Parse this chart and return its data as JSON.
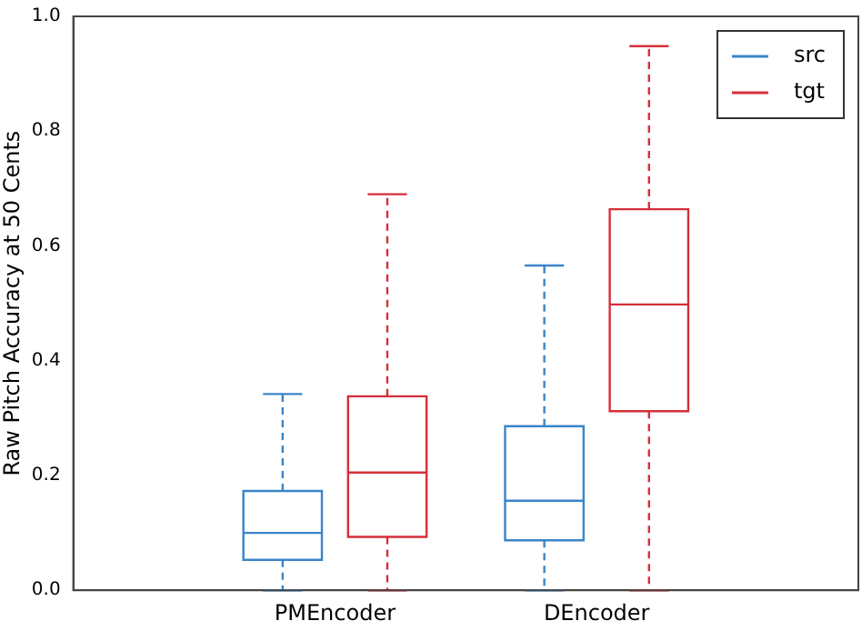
{
  "chart_data": {
    "type": "box",
    "ylabel": "Raw Pitch Accuracy at 50 Cents",
    "categories": [
      "PMEncoder",
      "DEncoder"
    ],
    "ylim": [
      0,
      1.0
    ],
    "yticks": [
      {
        "value": 0,
        "label": "0.0"
      },
      {
        "value": 0.2,
        "label": "0.2"
      },
      {
        "value": 0.4,
        "label": "0.4"
      },
      {
        "value": 0.6,
        "label": "0.6"
      },
      {
        "value": 0.8,
        "label": "0.8"
      },
      {
        "value": 1.0,
        "label": "1.0"
      }
    ],
    "grid": false,
    "legend": "top right",
    "series": [
      {
        "name": "src",
        "color": "#3a85c8",
        "boxes": [
          {
            "low": 0,
            "q1": 0.053,
            "median": 0.1,
            "q3": 0.173,
            "high": 0.342
          },
          {
            "low": 0,
            "q1": 0.087,
            "median": 0.156,
            "q3": 0.286,
            "high": 0.566
          }
        ]
      },
      {
        "name": "tgt",
        "color": "#d62f3a",
        "boxes": [
          {
            "low": 0,
            "q1": 0.093,
            "median": 0.205,
            "q3": 0.338,
            "high": 0.69
          },
          {
            "low": 0,
            "q1": 0.312,
            "median": 0.498,
            "q3": 0.664,
            "high": 0.948
          }
        ]
      }
    ]
  }
}
